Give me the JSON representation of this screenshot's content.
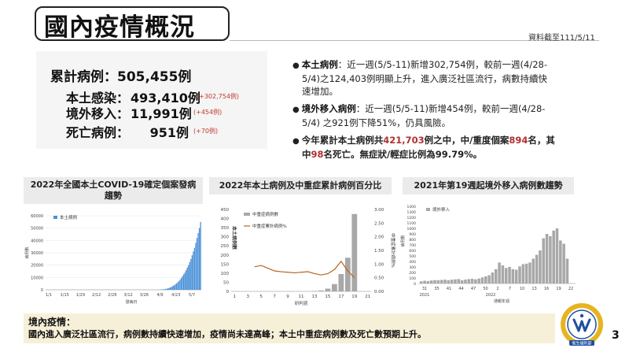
{
  "header": {
    "title": "國內疫情概況",
    "date_note": "資料截至111/5/11"
  },
  "stats": {
    "total": "累計病例：505,455例",
    "local_label": "本土感染：",
    "local_value": "493,410例",
    "local_delta": "(+302,754例)",
    "imported_label": "境外移入：",
    "imported_value": "11,991例",
    "imported_delta": "(+454例)",
    "death_label": "死亡病例：",
    "death_value": "951例",
    "death_delta": "(+70例)"
  },
  "bullets": {
    "b1_lead": "本土病例",
    "b1_text": "：近一週(5/5-11)新增302,754例，較前一週(4/28-5/4)之124,403例明顯上升，進入廣泛社區流行，病數持續快速增加。",
    "b1_line1": "：近一週(5/5-11)新增302,754例，較前一週(4/28-",
    "b1_line2": "5/4)之124,403例明顯上升，進入廣泛社區流行，病數持續快",
    "b1_line3": "速增加。",
    "b2_lead": "境外移入病例",
    "b2_line1": "：近一週(5/5-11)新增454例，較前一週(4/28-",
    "b2_line2": "5/4) 之921例下降51%，仍具風險。",
    "b3_p1": "今年累計本土病例共",
    "b3_n1": "421,703",
    "b3_p2": "例之中，中/重度個案",
    "b3_n2": "894",
    "b3_p3": "名，其",
    "b3_p4": "中",
    "b3_n3": "98",
    "b3_p5": "名死亡。無症狀/輕症比例為99.79%。"
  },
  "panels": {
    "p1_line1": "2022年全國本土COVID-19確定個案發病",
    "p1_line2": "趨勢",
    "p2": "2022年本土病例及中重症累計病例百分比",
    "p3": "2021年第19週起境外移入病例數趨勢"
  },
  "chart_data": [
    {
      "type": "bar",
      "title": "2022年全國本土COVID-19確定個案發病趨勢",
      "legend": "本土病例",
      "xlabel": "發病日",
      "ylabel": "病例數",
      "ylim": [
        0,
        60000
      ],
      "yticks": [
        "0",
        "10000",
        "20000",
        "30000",
        "40000",
        "50000",
        "60000"
      ],
      "xticks": [
        "1/1",
        "1/15",
        "1/29",
        "2/12",
        "2/26",
        "3/12",
        "3/26",
        "4/9",
        "4/23",
        "5/7"
      ],
      "values": [
        0,
        0,
        0,
        0,
        0,
        0,
        0,
        0,
        0,
        0,
        0,
        0,
        0,
        0,
        0,
        0,
        0,
        0,
        0,
        0,
        0,
        0,
        0,
        0,
        0,
        0,
        0,
        0,
        0,
        0,
        0,
        0,
        0,
        0,
        0,
        0,
        0,
        0,
        0,
        0,
        0,
        0,
        0,
        0,
        0,
        0,
        0,
        0,
        0,
        0,
        0,
        0,
        0,
        0,
        0,
        0,
        0,
        0,
        0,
        0,
        0,
        0,
        0,
        0,
        0,
        0,
        0,
        0,
        0,
        0,
        0,
        0,
        0,
        0,
        0,
        0,
        0,
        0,
        0,
        0,
        0,
        0,
        0,
        0,
        0,
        0,
        0,
        0,
        0,
        0,
        0,
        0,
        0,
        0,
        100,
        200,
        300,
        400,
        500,
        700,
        900,
        1200,
        1500,
        1900,
        2400,
        3000,
        3600,
        4300,
        5200,
        6000,
        7000,
        8200,
        9500,
        11000,
        12500,
        14000,
        16000,
        18000,
        20000,
        22500,
        25000,
        28000,
        31000,
        34000,
        38000,
        42000,
        46000,
        50000,
        55000
      ]
    },
    {
      "type": "bar+line",
      "title": "2022年本土病例及中重症累計病例百分比",
      "legend_bar": "中重症病例數",
      "legend_line": "中重症累計病例%",
      "xlabel": "研判週",
      "ylabel_left": "本土病例數",
      "ylabel_right": "中重症累計病例%",
      "ylim_left": [
        0,
        450
      ],
      "ylim_right": [
        0,
        3.0
      ],
      "yticks_left": [
        "0",
        "50",
        "100",
        "150",
        "200",
        "250",
        "300",
        "350",
        "400",
        "450"
      ],
      "yticks_right": [
        "0.00",
        "0.50",
        "1.00",
        "1.50",
        "2.00",
        "2.50",
        "3.00"
      ],
      "xticks": [
        "1",
        "3",
        "5",
        "7",
        "9",
        "11",
        "13",
        "15",
        "17",
        "19",
        "21"
      ],
      "weeks": [
        1,
        2,
        3,
        4,
        5,
        6,
        7,
        8,
        9,
        10,
        11,
        12,
        13,
        14,
        15,
        16,
        17,
        18,
        19,
        20,
        21
      ],
      "bars": [
        0,
        0,
        0,
        0,
        0,
        0,
        0,
        0,
        0,
        0,
        0,
        0,
        2,
        5,
        15,
        40,
        95,
        185,
        425,
        0,
        0
      ],
      "line": [
        null,
        null,
        null,
        0.9,
        0.95,
        0.85,
        0.75,
        0.72,
        0.7,
        0.68,
        0.7,
        0.72,
        0.65,
        0.6,
        0.65,
        0.8,
        1.1,
        0.75,
        0.5,
        null,
        null
      ]
    },
    {
      "type": "bar",
      "title": "2021年第19週起境外移入病例數趨勢",
      "legend": "境外移入",
      "xlabel": "通報年週",
      "ylabel": "病例數",
      "ylim": [
        0,
        1400
      ],
      "yticks": [
        "0",
        "100",
        "200",
        "300",
        "400",
        "500",
        "600",
        "700",
        "800",
        "900",
        "1000",
        "1100",
        "1200",
        "1300",
        "1400"
      ],
      "xticks": [
        "31",
        "35",
        "41",
        "44",
        "47",
        "50",
        "2",
        "7",
        "10",
        "13",
        "16",
        "19",
        "22"
      ],
      "year_labels": [
        "2021",
        "2022"
      ],
      "values": [
        40,
        50,
        45,
        55,
        60,
        60,
        65,
        70,
        60,
        70,
        75,
        80,
        60,
        70,
        80,
        85,
        75,
        90,
        110,
        130,
        150,
        200,
        260,
        380,
        330,
        280,
        300,
        260,
        250,
        310,
        350,
        360,
        380,
        450,
        520,
        600,
        820,
        900,
        860,
        960,
        1000,
        780,
        720,
        450
      ]
    }
  ],
  "footer": {
    "heading": "境內疫情：",
    "text": "國內進入廣泛社區流行，病例數持續快速增加，疫情尚未達高峰；本土中重症病例數及死亡數預期上升。"
  },
  "seal": {
    "label": "衛生福利部"
  },
  "page": {
    "number": "3"
  },
  "colors": {
    "bar": "#4a90d9",
    "gray_bar": "#a8a8a8",
    "line": "#b5651d",
    "accent_red": "#b03030",
    "footer_bg": "#f7f0d8",
    "seal_blue": "#1f4fa0",
    "seal_gold": "#e6b422"
  }
}
